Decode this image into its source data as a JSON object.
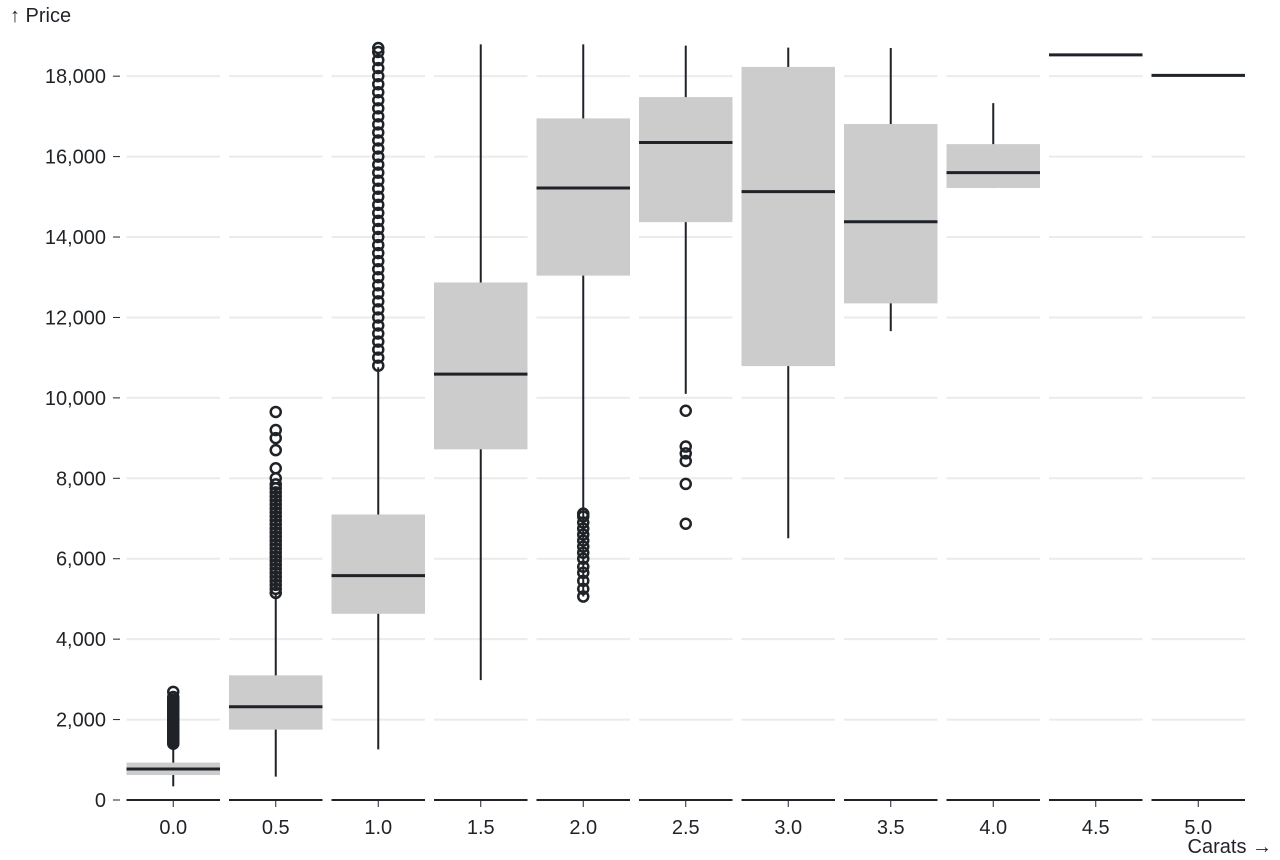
{
  "chart_data": {
    "type": "box",
    "title": "",
    "xlabel": "Carats →",
    "ylabel": "↑ Price",
    "ylim": [
      0,
      18800
    ],
    "yticks": [
      {
        "value": 0,
        "label": "0"
      },
      {
        "value": 2000,
        "label": "2,000"
      },
      {
        "value": 4000,
        "label": "4,000"
      },
      {
        "value": 6000,
        "label": "6,000"
      },
      {
        "value": 8000,
        "label": "8,000"
      },
      {
        "value": 10000,
        "label": "10,000"
      },
      {
        "value": 12000,
        "label": "12,000"
      },
      {
        "value": 14000,
        "label": "14,000"
      },
      {
        "value": 16000,
        "label": "16,000"
      },
      {
        "value": 18000,
        "label": "18,000"
      }
    ],
    "grid": true,
    "box_color": "#cccccc",
    "median_color": "#1f2328",
    "grid_color": "#ebebeb",
    "categories": [
      "0.0",
      "0.5",
      "1.0",
      "1.5",
      "2.0",
      "2.5",
      "3.0",
      "3.5",
      "4.0",
      "4.5",
      "5.0"
    ],
    "boxes": [
      {
        "category": "0.0",
        "whisker_low": 340,
        "q1": 620,
        "median": 770,
        "q3": 930,
        "whisker_high": 1370,
        "outliers": [
          1400,
          1450,
          1500,
          1550,
          1600,
          1650,
          1700,
          1750,
          1800,
          1850,
          1900,
          1950,
          2000,
          2050,
          2100,
          2150,
          2200,
          2250,
          2300,
          2350,
          2400,
          2450,
          2500,
          2560,
          2690
        ]
      },
      {
        "category": "0.5",
        "whisker_low": 580,
        "q1": 1750,
        "median": 2320,
        "q3": 3100,
        "whisker_high": 5100,
        "outliers": [
          5150,
          5250,
          5350,
          5450,
          5550,
          5650,
          5750,
          5850,
          5950,
          6050,
          6150,
          6250,
          6350,
          6450,
          6550,
          6650,
          6750,
          6850,
          6950,
          7050,
          7150,
          7250,
          7350,
          7450,
          7550,
          7650,
          7750,
          7850,
          8000,
          8250,
          8700,
          9000,
          9200,
          9650
        ]
      },
      {
        "category": "1.0",
        "whisker_low": 1260,
        "q1": 4630,
        "median": 5580,
        "q3": 7100,
        "whisker_high": 10760,
        "outliers": [
          10800,
          11000,
          11200,
          11400,
          11600,
          11800,
          12000,
          12200,
          12400,
          12600,
          12800,
          13000,
          13200,
          13400,
          13600,
          13800,
          14000,
          14200,
          14400,
          14600,
          14800,
          15000,
          15200,
          15400,
          15600,
          15800,
          16000,
          16200,
          16400,
          16600,
          16800,
          17000,
          17200,
          17400,
          17600,
          17800,
          18000,
          18200,
          18400,
          18600,
          18700
        ]
      },
      {
        "category": "1.5",
        "whisker_low": 2980,
        "q1": 8720,
        "median": 10590,
        "q3": 12870,
        "whisker_high": 18790,
        "outliers": []
      },
      {
        "category": "2.0",
        "whisker_low": 5060,
        "q1": 13040,
        "median": 15220,
        "q3": 16950,
        "whisker_high": 18790,
        "outliers": [
          5060,
          5250,
          5450,
          5650,
          5800,
          6000,
          6150,
          6300,
          6450,
          6600,
          6750,
          6900,
          7050,
          7120
        ]
      },
      {
        "category": "2.5",
        "whisker_low": 10100,
        "q1": 14370,
        "median": 16350,
        "q3": 17480,
        "whisker_high": 18760,
        "outliers": [
          6870,
          7860,
          8430,
          8620,
          8790,
          9680
        ]
      },
      {
        "category": "3.0",
        "whisker_low": 6510,
        "q1": 10790,
        "median": 15130,
        "q3": 18230,
        "whisker_high": 18710,
        "outliers": []
      },
      {
        "category": "3.5",
        "whisker_low": 11660,
        "q1": 12350,
        "median": 14380,
        "q3": 16810,
        "whisker_high": 18700,
        "outliers": []
      },
      {
        "category": "4.0",
        "whisker_low": 15220,
        "q1": 15220,
        "median": 15600,
        "q3": 16310,
        "whisker_high": 17330,
        "outliers": []
      },
      {
        "category": "4.5",
        "whisker_low": 18530,
        "q1": 18530,
        "median": 18530,
        "q3": 18530,
        "whisker_high": 18530,
        "outliers": []
      },
      {
        "category": "5.0",
        "whisker_low": 18020,
        "q1": 18020,
        "median": 18020,
        "q3": 18020,
        "whisker_high": 18020,
        "outliers": []
      }
    ]
  }
}
